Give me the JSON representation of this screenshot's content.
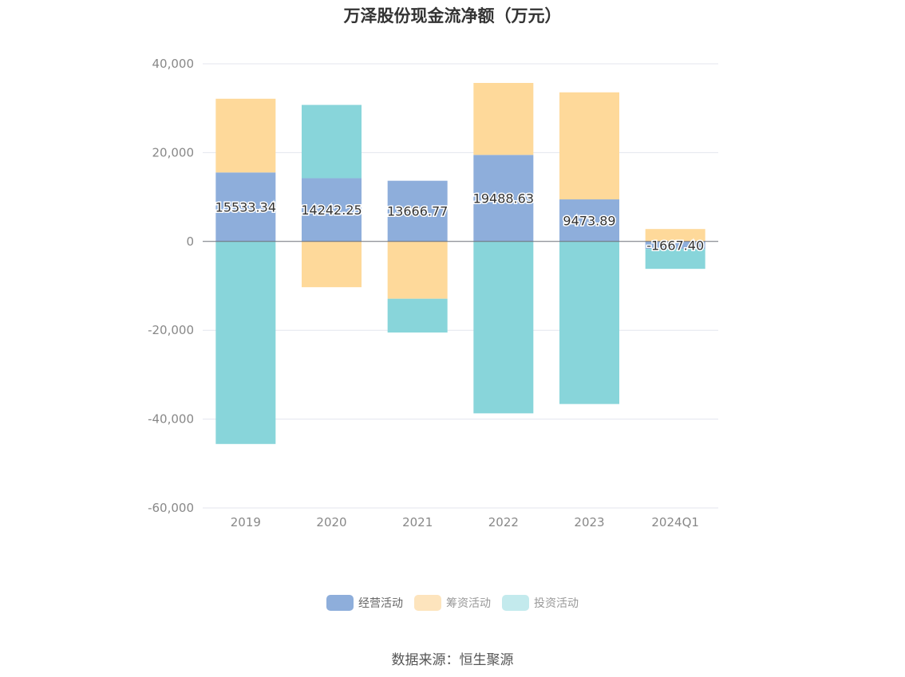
{
  "chart_data": {
    "type": "bar",
    "stacked": true,
    "title": "万泽股份现金流净额（万元）",
    "categories": [
      "2019",
      "2020",
      "2021",
      "2022",
      "2023",
      "2024Q1"
    ],
    "ylim": [
      -60000,
      40000
    ],
    "yticks": [
      40000,
      20000,
      0,
      -20000,
      -40000,
      -60000
    ],
    "ytick_labels": [
      "40,000",
      "20,000",
      "0",
      "-20,000",
      "-40,000",
      "-60,000"
    ],
    "grid": true,
    "legend_position": "bottom",
    "series": [
      {
        "name": "经营活动",
        "color": "#8eaedb",
        "values": [
          15533.34,
          14242.25,
          13666.77,
          19488.63,
          9473.89,
          -1667.4
        ],
        "labels": [
          "15533.34",
          "14242.25",
          "13666.77",
          "19488.63",
          "9473.89",
          "-1667.40"
        ]
      },
      {
        "name": "筹资活动",
        "color": "#fed99a",
        "values": [
          16600,
          -10300,
          -12900,
          16200,
          24100,
          2800
        ]
      },
      {
        "name": "投资活动",
        "color": "#88d5da",
        "values": [
          -45600,
          16500,
          -7600,
          -38700,
          -36600,
          -4500
        ]
      }
    ]
  },
  "legend": [
    {
      "label": "经营活动",
      "color": "#8eaedb"
    },
    {
      "label": "筹资活动",
      "color": "#fde4bd"
    },
    {
      "label": "投资活动",
      "color": "#c3eaed"
    }
  ],
  "source": "数据来源：恒生聚源"
}
